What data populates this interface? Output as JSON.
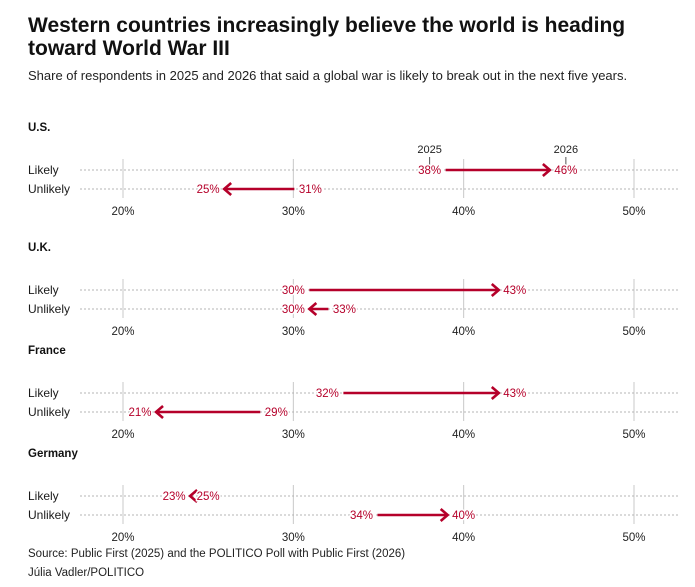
{
  "chart_data": {
    "type": "dumbbell-arrow",
    "title": "Western countries increasingly believe the world is heading toward World War III",
    "subtitle": "Share of respondents in 2025 and 2026 that said a global war is likely to break out in the next five years.",
    "xlim": [
      17.5,
      52.5
    ],
    "ticks": [
      20,
      30,
      40,
      50
    ],
    "tick_labels": [
      "20%",
      "30%",
      "40%",
      "50%"
    ],
    "year_labels": {
      "from": "2025",
      "to": "2026"
    },
    "arrow_color": "#b5002a",
    "panels": [
      {
        "country": "U.S.",
        "rows": [
          {
            "label": "Likely",
            "from": 38,
            "to": 46,
            "from_label": "38%",
            "to_label": "46%"
          },
          {
            "label": "Unlikely",
            "from": 31,
            "to": 25,
            "from_label": "31%",
            "to_label": "25%"
          }
        ]
      },
      {
        "country": "U.K.",
        "rows": [
          {
            "label": "Likely",
            "from": 30,
            "to": 43,
            "from_label": "30%",
            "to_label": "43%"
          },
          {
            "label": "Unlikely",
            "from": 33,
            "to": 30,
            "from_label": "33%",
            "to_label": "30%"
          }
        ]
      },
      {
        "country": "France",
        "rows": [
          {
            "label": "Likely",
            "from": 32,
            "to": 43,
            "from_label": "32%",
            "to_label": "43%"
          },
          {
            "label": "Unlikely",
            "from": 29,
            "to": 21,
            "from_label": "29%",
            "to_label": "21%"
          }
        ]
      },
      {
        "country": "Germany",
        "rows": [
          {
            "label": "Likely",
            "from": 25,
            "to": 23,
            "from_label": "25%",
            "to_label": "23%"
          },
          {
            "label": "Unlikely",
            "from": 34,
            "to": 40,
            "from_label": "34%",
            "to_label": "40%"
          }
        ]
      }
    ]
  },
  "footer": {
    "source": "Source: Public First (2025) and the POLITICO Poll with Public First (2026)",
    "credit": "Júlia Vadler/POLITICO"
  }
}
